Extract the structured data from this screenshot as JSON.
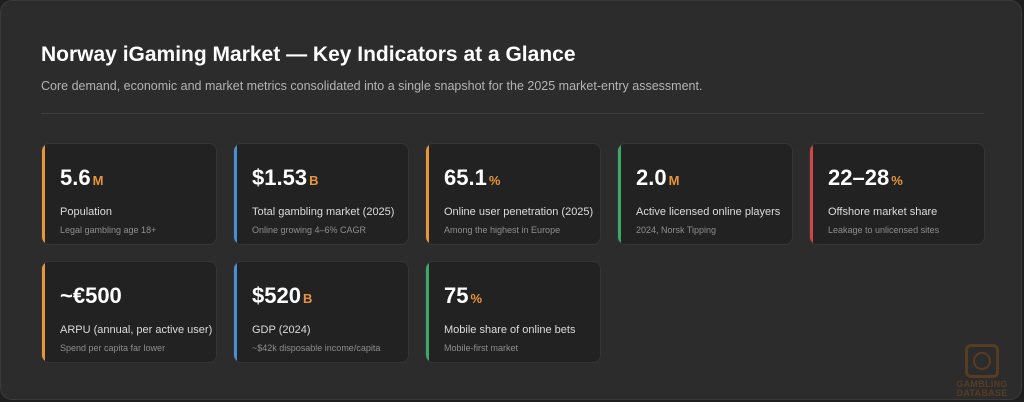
{
  "header": {
    "title": "Norway iGaming Market — Key Indicators at a Glance",
    "subtitle": "Core demand, economic and market metrics consolidated into a single snapshot for the 2025 market-entry assessment."
  },
  "colors": {
    "orange": "#e8953a",
    "blue": "#4a8fd4",
    "green": "#3aa866",
    "red": "#d04545"
  },
  "cards": [
    {
      "value": "5.6",
      "unit": "M",
      "label": "Population",
      "note": "Legal gambling age 18+",
      "accent": "#e8953a"
    },
    {
      "value": "$1.53",
      "unit": "B",
      "label": "Total gambling market (2025)",
      "note": "Online growing 4–6% CAGR",
      "accent": "#4a8fd4"
    },
    {
      "value": "65.1",
      "unit": "%",
      "label": "Online user penetration (2025)",
      "note": "Among the highest in Europe",
      "accent": "#e8953a"
    },
    {
      "value": "2.0",
      "unit": "M",
      "label": "Active licensed online players",
      "note": "2024, Norsk Tipping",
      "accent": "#3aa866"
    },
    {
      "value": "22–28",
      "unit": "%",
      "label": "Offshore market share",
      "note": "Leakage to unlicensed sites",
      "accent": "#d04545"
    },
    {
      "value": "~€500",
      "unit": "",
      "label": "ARPU (annual, per active user)",
      "note": "Spend per capita far lower",
      "accent": "#e8953a"
    },
    {
      "value": "$520",
      "unit": "B",
      "label": "GDP (2024)",
      "note": "~$42k disposable income/capita",
      "accent": "#4a8fd4"
    },
    {
      "value": "75",
      "unit": "%",
      "label": "Mobile share of online bets",
      "note": "Mobile-first market",
      "accent": "#3aa866"
    }
  ],
  "watermark": {
    "line1": "GAMBLING",
    "line2": "DATABASE"
  }
}
